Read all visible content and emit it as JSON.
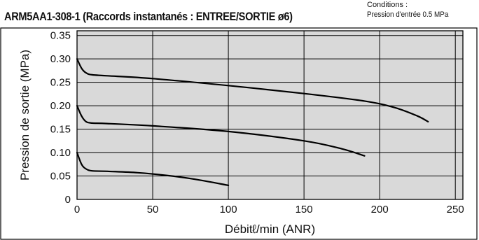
{
  "header": {
    "title": "ARM5AA1-308-1 (Raccords instantanés : ENTREE/SORTIE ø6)",
    "conditions_label": "Conditions :",
    "conditions_value": "Pression d'entrée  0.5 MPa"
  },
  "chart_data": {
    "type": "line",
    "title": "ARM5AA1-308-1 (Raccords instantanés : ENTREE/SORTIE ø6)",
    "xlabel": "Débitℓ/min (ANR)",
    "ylabel": "Pression de sortie (MPa)",
    "xlim": [
      0,
      255
    ],
    "ylim": [
      0,
      0.36
    ],
    "x_ticks": [
      0,
      50,
      100,
      150,
      200,
      250
    ],
    "x_tick_labels": [
      "0",
      "50",
      "100",
      "150",
      "200",
      "250"
    ],
    "y_ticks": [
      0,
      0.05,
      0.1,
      0.15,
      0.2,
      0.25,
      0.3,
      0.35
    ],
    "y_tick_labels": [
      "0",
      "0.05",
      "0.10",
      "0.15",
      "0.20",
      "0.25",
      "0.30",
      "0.35"
    ],
    "grid": true,
    "plot_background": "#d9d9d9",
    "line_color": "#000000",
    "series": [
      {
        "x": [
          0,
          3,
          6,
          10,
          20,
          50,
          100,
          150,
          190,
          210,
          225,
          232
        ],
        "y": [
          0.3,
          0.28,
          0.27,
          0.266,
          0.264,
          0.258,
          0.243,
          0.226,
          0.21,
          0.196,
          0.178,
          0.166
        ]
      },
      {
        "x": [
          0,
          3,
          6,
          10,
          20,
          50,
          100,
          150,
          175,
          190
        ],
        "y": [
          0.2,
          0.178,
          0.166,
          0.163,
          0.162,
          0.157,
          0.145,
          0.125,
          0.108,
          0.093
        ]
      },
      {
        "x": [
          0,
          3,
          6,
          10,
          20,
          40,
          60,
          80,
          100
        ],
        "y": [
          0.1,
          0.075,
          0.065,
          0.061,
          0.06,
          0.057,
          0.051,
          0.042,
          0.03
        ]
      }
    ]
  }
}
